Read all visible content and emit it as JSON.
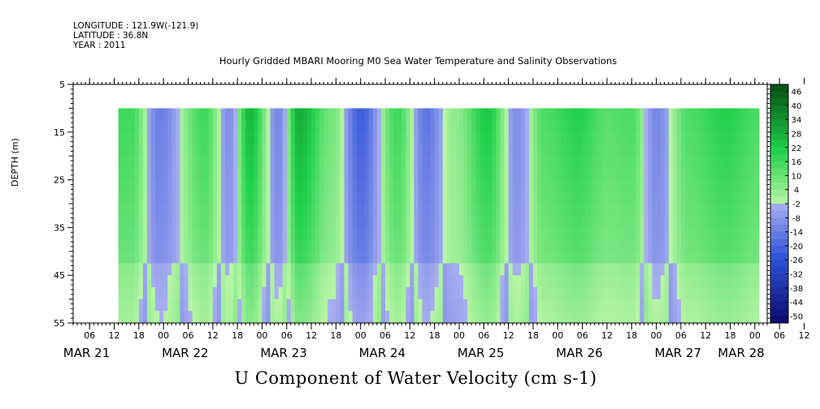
{
  "header": {
    "longitude": "LONGITUDE : 121.9W(-121.9)",
    "latitude": "LATITUDE : 36.8N",
    "year": "YEAR : 2011"
  },
  "chart_data": {
    "type": "heatmap",
    "title": "Hourly Gridded MBARI Mooring M0 Sea Water Temperature and Salinity Observations",
    "variable_title": "U Component of Water Velocity (cm s-1)",
    "ylabel": "DEPTH (m)",
    "y_axis": {
      "ylim": [
        5,
        55
      ],
      "inverted": true,
      "ticks": [
        5,
        15,
        25,
        35,
        45,
        55
      ]
    },
    "x_axis": {
      "hour_tick_labels": [
        "06",
        "12",
        "18",
        "00",
        "06",
        "12",
        "18",
        "00",
        "06",
        "12",
        "18",
        "00",
        "06",
        "12",
        "18",
        "00",
        "06",
        "12",
        "18",
        "00",
        "06",
        "12",
        "18",
        "00",
        "06",
        "12",
        "18",
        "00",
        "06",
        "12",
        "18",
        "00"
      ],
      "date_labels": [
        "MAR 21",
        "MAR 22",
        "MAR 23",
        "MAR 24",
        "MAR 25",
        "MAR 26",
        "MAR 27",
        "MAR 28"
      ],
      "range": [
        "2011-03-21 02:00",
        "2011-03-28 03:00"
      ],
      "data_range": [
        "2011-03-21 13:00",
        "2011-03-28 01:00"
      ]
    },
    "depth_range_data": [
      10,
      55
    ],
    "colorbar": {
      "labels": [
        "46",
        "40",
        "34",
        "28",
        "22",
        "16",
        "10",
        "4",
        "-2",
        "-8",
        "-14",
        "-20",
        "-26",
        "-32",
        "-38",
        "-44",
        "-50"
      ],
      "min": -50,
      "max": 50
    },
    "dominant_columns_cm_s": [
      {
        "time": "2011-03-21 16:00",
        "u": 18
      },
      {
        "time": "2011-03-21 23:00",
        "u": -12
      },
      {
        "time": "2011-03-22 10:00",
        "u": 18
      },
      {
        "time": "2011-03-22 16:00",
        "u": -8
      },
      {
        "time": "2011-03-22 21:00",
        "u": 28
      },
      {
        "time": "2011-03-23 04:00",
        "u": -10
      },
      {
        "time": "2011-03-23 09:00",
        "u": 30
      },
      {
        "time": "2011-03-23 17:00",
        "u": 10
      },
      {
        "time": "2011-03-24 00:00",
        "u": -20
      },
      {
        "time": "2011-03-24 09:00",
        "u": 18
      },
      {
        "time": "2011-03-24 16:00",
        "u": -14
      },
      {
        "time": "2011-03-24 23:00",
        "u": 6
      },
      {
        "time": "2011-03-25 07:00",
        "u": 24
      },
      {
        "time": "2011-03-25 14:00",
        "u": -8
      },
      {
        "time": "2011-03-25 21:00",
        "u": 16
      },
      {
        "time": "2011-03-26 05:00",
        "u": 22
      },
      {
        "time": "2011-03-26 12:00",
        "u": 14
      },
      {
        "time": "2011-03-26 18:00",
        "u": 16
      },
      {
        "time": "2011-03-27 00:00",
        "u": -10
      },
      {
        "time": "2011-03-27 08:00",
        "u": 16
      },
      {
        "time": "2011-03-27 17:00",
        "u": 22
      },
      {
        "time": "2011-03-28 01:00",
        "u": 16
      }
    ],
    "palette": {
      "neg_dark": "#0a0a6e",
      "neg_mid": "#2f55d8",
      "neg_light": "#a9aef0",
      "pos_light": "#b8f5a6",
      "pos_mid": "#1ed04a",
      "pos_dark": "#064d14"
    }
  }
}
